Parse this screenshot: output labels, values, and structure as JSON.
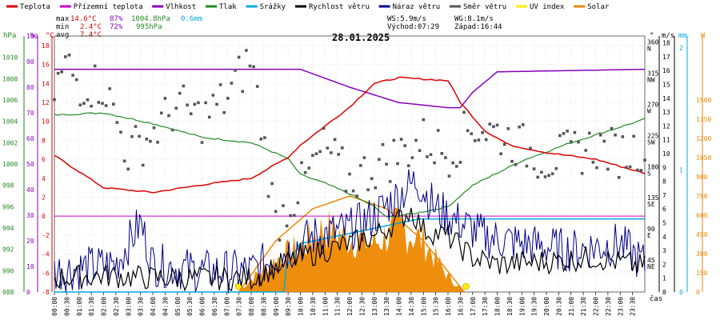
{
  "legend": [
    {
      "label": "Teplota",
      "color": "#dd0000"
    },
    {
      "label": "Přízemní teplota",
      "color": "#cc00cc"
    },
    {
      "label": "Vlhkost",
      "color": "#8800bb"
    },
    {
      "label": "Tlak",
      "color": "#228822"
    },
    {
      "label": "Srážky",
      "color": "#00aadd"
    },
    {
      "label": "Rychlost větru",
      "color": "#000000"
    },
    {
      "label": "Náraz větru",
      "color": "#000088"
    },
    {
      "label": "Směr větru",
      "color": "#555555"
    },
    {
      "label": "UV index",
      "color": "#ffee00"
    },
    {
      "label": "Solar",
      "color": "#ee8800"
    }
  ],
  "stats": {
    "max": {
      "label": "max",
      "temp": "14.6°C",
      "hum": "87%",
      "press": "1004.8hPa",
      "rain": "0.6mm"
    },
    "min": {
      "label": "min",
      "temp": "2.4°C",
      "hum": "72%",
      "press": "995hPa"
    },
    "avg": {
      "label": "avg",
      "temp": "7.4°C"
    }
  },
  "wind_info": {
    "ws": "WS:5.9m/s",
    "wg": "WG:8.1m/s",
    "sunrise": "Východ:07:29",
    "sunset": "Západ:16:44"
  },
  "date": "28.01.2025",
  "axis_units": {
    "hpa": "hPa",
    "pct": "%",
    "degc": "°C",
    "deg": "°",
    "ms": "m/s",
    "mm": "mm",
    "w": "W",
    "time": "čas"
  },
  "colors": {
    "temp": "#dd0000",
    "groundtemp": "#cc00cc",
    "hum": "#8800bb",
    "press": "#228822",
    "rain": "#00aadd",
    "wind": "#000000",
    "gust": "#000088",
    "dir": "#555555",
    "uv": "#ffee00",
    "solar": "#ee8800"
  },
  "chart_data": {
    "type": "line",
    "xlabel": "čas",
    "time_ticks": [
      "00:00",
      "00:30",
      "01:00",
      "01:30",
      "02:00",
      "02:30",
      "03:00",
      "03:30",
      "04:00",
      "04:30",
      "05:00",
      "05:30",
      "06:00",
      "06:30",
      "07:00",
      "07:30",
      "08:00",
      "08:30",
      "09:00",
      "09:30",
      "10:00",
      "10:30",
      "11:00",
      "11:30",
      "12:00",
      "12:30",
      "13:00",
      "13:30",
      "14:00",
      "14:30",
      "15:00",
      "15:30",
      "16:00",
      "16:30",
      "17:00",
      "17:30",
      "18:00",
      "18:30",
      "19:00",
      "19:30",
      "20:00",
      "20:30",
      "21:00",
      "21:30",
      "22:00",
      "22:30",
      "23:00",
      "23:30"
    ],
    "axes": {
      "pressure_hpa": {
        "ticks": [
          "988",
          "990",
          "992",
          "994",
          "996",
          "998",
          "1000",
          "1002",
          "1004",
          "1006",
          "1008",
          "1010"
        ],
        "range": [
          988,
          1012
        ]
      },
      "humidity_pct": {
        "ticks": [
          "0",
          "10",
          "20",
          "30",
          "40",
          "50",
          "60",
          "70",
          "80",
          "90",
          "100"
        ],
        "range": [
          0,
          100
        ]
      },
      "temp_c": {
        "ticks": [
          "-8",
          "-6",
          "-4",
          "-2",
          "0",
          "2",
          "4",
          "6",
          "8",
          "10",
          "12",
          "14",
          "16",
          "18"
        ],
        "range": [
          -8,
          19
        ]
      },
      "wind_dir_deg": {
        "ticks": [
          "45",
          "90",
          "135",
          "180",
          "225",
          "270",
          "315",
          "360"
        ],
        "compass": [
          "NE",
          "E",
          "SE",
          "S",
          "SW",
          "W",
          "NW",
          "N"
        ],
        "range": [
          0,
          370
        ]
      },
      "wind_ms": {
        "ticks": [
          "0",
          "1",
          "2",
          "3",
          "4",
          "5",
          "6",
          "7",
          "8",
          "9",
          "10",
          "11",
          "12",
          "13",
          "14",
          "15",
          "16",
          "17",
          "18"
        ],
        "range": [
          0,
          18.5
        ]
      },
      "rain_mm": {
        "ticks": [
          "0",
          "1",
          "2"
        ],
        "range": [
          0,
          2.1
        ]
      },
      "solar_w": {
        "ticks": [
          "0",
          "150",
          "300",
          "450",
          "600",
          "750",
          "900",
          "1050",
          "1200",
          "1350",
          "1500"
        ],
        "range": [
          0,
          2000
        ]
      }
    },
    "temperature_c": {
      "x": [
        "00:00",
        "02:00",
        "04:00",
        "06:00",
        "08:00",
        "09:30",
        "10:00",
        "12:00",
        "13:00",
        "14:00",
        "16:00",
        "16:30",
        "17:30",
        "18:30",
        "20:00",
        "22:00",
        "24:00"
      ],
      "y": [
        6.4,
        3,
        2.5,
        3.3,
        4,
        6.2,
        7.5,
        11.5,
        14,
        14.6,
        14.3,
        12,
        9,
        7.5,
        6.7,
        6,
        4.5
      ]
    },
    "ground_temp_c": {
      "x": [
        "00:00",
        "24:00"
      ],
      "y": [
        0,
        0
      ]
    },
    "humidity_pct": {
      "x": [
        "00:00",
        "04:00",
        "10:00",
        "12:00",
        "14:00",
        "16:00",
        "16:30",
        "17:00",
        "18:00",
        "24:00"
      ],
      "y": [
        87,
        87,
        87,
        80,
        74,
        72,
        72,
        78,
        86,
        87
      ]
    },
    "pressure_hpa": {
      "x": [
        "00:00",
        "02:00",
        "04:00",
        "06:00",
        "08:00",
        "09:30",
        "10:00",
        "11:00",
        "12:00",
        "13:00",
        "13:30",
        "14:30",
        "16:00",
        "17:00",
        "19:00",
        "21:00",
        "24:00"
      ],
      "y": [
        1004.6,
        1004.8,
        1003.8,
        1002.5,
        1002,
        1000.5,
        999,
        998.2,
        997.2,
        996,
        995,
        995.3,
        996,
        998,
        1000.3,
        1002,
        1004.2
      ]
    },
    "rain_mm": {
      "x": [
        "00:00",
        "09:20",
        "09:25",
        "10:00",
        "10:05",
        "14:50",
        "14:55",
        "24:00"
      ],
      "y": [
        0,
        0,
        0.2,
        0.4,
        0.4,
        0.6,
        0.6,
        0.6
      ]
    },
    "wind_speed_ms": {
      "x": [
        "00:00",
        "02:00",
        "04:00",
        "06:00",
        "08:00",
        "09:00",
        "10:00",
        "11:00",
        "12:00",
        "13:00",
        "14:00",
        "14:30",
        "15:00",
        "16:00",
        "17:00",
        "18:00",
        "20:00",
        "22:00",
        "24:00"
      ],
      "y": [
        1,
        1.2,
        1,
        1,
        1,
        1.8,
        2.5,
        3,
        3.5,
        4,
        5.2,
        5.9,
        4.5,
        4,
        2.5,
        2,
        2.2,
        2.5,
        1.8
      ]
    },
    "wind_gust_ms": {
      "x": [
        "00:00",
        "02:30",
        "03:30",
        "04:00",
        "06:00",
        "08:00",
        "09:30",
        "10:30",
        "12:00",
        "13:00",
        "14:00",
        "14:45",
        "15:30",
        "16:30",
        "17:30",
        "19:00",
        "21:00",
        "23:00",
        "24:00"
      ],
      "y": [
        1.5,
        2,
        5,
        2,
        1.5,
        1.5,
        3,
        4,
        4.5,
        5.5,
        7,
        8.1,
        6,
        5,
        4,
        3.5,
        3,
        3.5,
        2
      ]
    },
    "wind_dir_deg": {
      "x": [
        "00:00",
        "00:30",
        "01:00",
        "02:00",
        "03:00",
        "04:00",
        "05:00",
        "06:00",
        "07:00",
        "08:00",
        "09:00",
        "10:00",
        "11:00",
        "12:00",
        "13:00",
        "14:00",
        "15:00",
        "16:00",
        "17:00",
        "18:00",
        "19:00",
        "20:00",
        "21:00",
        "22:00",
        "23:00",
        "24:00"
      ],
      "y": [
        290,
        330,
        300,
        300,
        200,
        230,
        270,
        250,
        280,
        340,
        100,
        150,
        210,
        160,
        180,
        200,
        220,
        200,
        240,
        230,
        210,
        190,
        200,
        210,
        200,
        210
      ]
    },
    "solar_w": {
      "x": [
        "07:30",
        "08:00",
        "09:00",
        "10:00",
        "11:00",
        "12:00",
        "13:00",
        "14:00",
        "15:00",
        "16:00",
        "16:40"
      ],
      "y": [
        0,
        100,
        250,
        350,
        500,
        420,
        380,
        500,
        400,
        120,
        0
      ]
    },
    "solar_curve_w": {
      "x": [
        "07:30",
        "09:00",
        "10:30",
        "12:00",
        "13:30",
        "15:00",
        "16:40"
      ],
      "y": [
        0,
        400,
        650,
        750,
        650,
        400,
        0
      ]
    }
  }
}
